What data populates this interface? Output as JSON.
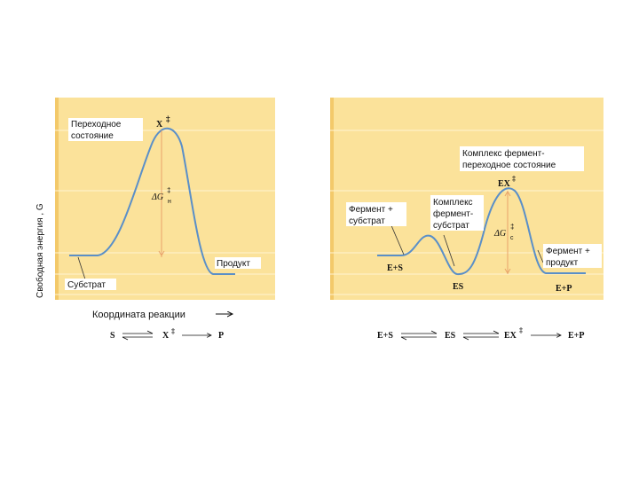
{
  "colors": {
    "panel": "#fbe29a",
    "panel_light": "#fff0c4",
    "curve": "#5a8fc8",
    "arrow": "#e8a36a",
    "text": "#111111"
  },
  "y_axis_label": "Свободная энергия , G",
  "x_axis_label": "Координата реакции",
  "left": {
    "transition_state": [
      "Переходное",
      "состояние"
    ],
    "x_mark": "X",
    "delta_g": "ΔG",
    "delta_g_sub": "н",
    "product": "Продукт",
    "substrate": "Субстрат",
    "equation": {
      "s": "S",
      "x": "X",
      "p": "P"
    }
  },
  "right": {
    "complex_ts": [
      "Комплекс фермент-",
      "переходное состояние"
    ],
    "ex_mark": "EX",
    "enzyme_substrate": [
      "Фермент +",
      "субстрат"
    ],
    "complex_es": [
      "Комплекс",
      "фермент-",
      "субстрат"
    ],
    "delta_g": "ΔG",
    "delta_g_sub": "с",
    "enzyme_product": [
      "Фермент +",
      "продукт"
    ],
    "e_s": "E+S",
    "es": "ES",
    "e_p": "E+P",
    "equation": {
      "es_left": "E+S",
      "es": "ES",
      "ex": "EX",
      "ep": "E+P"
    }
  }
}
